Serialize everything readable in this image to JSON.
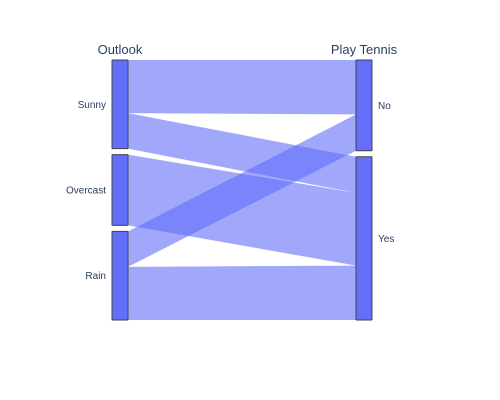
{
  "chart_data": {
    "type": "parallel-categories",
    "dimensions": [
      {
        "label": "Outlook",
        "categories": [
          "Sunny",
          "Overcast",
          "Rain"
        ]
      },
      {
        "label": "Play Tennis",
        "categories": [
          "No",
          "Yes"
        ]
      }
    ],
    "counts": {
      "Outlook": {
        "Sunny": 5,
        "Overcast": 4,
        "Rain": 5
      },
      "Play Tennis": {
        "No": 5,
        "Yes": 9
      }
    },
    "flows": [
      {
        "from": "Sunny",
        "to": "No",
        "count": 3
      },
      {
        "from": "Sunny",
        "to": "Yes",
        "count": 2
      },
      {
        "from": "Overcast",
        "to": "Yes",
        "count": 4
      },
      {
        "from": "Rain",
        "to": "No",
        "count": 2
      },
      {
        "from": "Rain",
        "to": "Yes",
        "count": 3
      }
    ],
    "colors": {
      "node_fill": "#636efa",
      "node_stroke": "#444444",
      "band_fill": "#636efa",
      "band_opacity": 0.6,
      "text": "#2a3f5f"
    }
  }
}
